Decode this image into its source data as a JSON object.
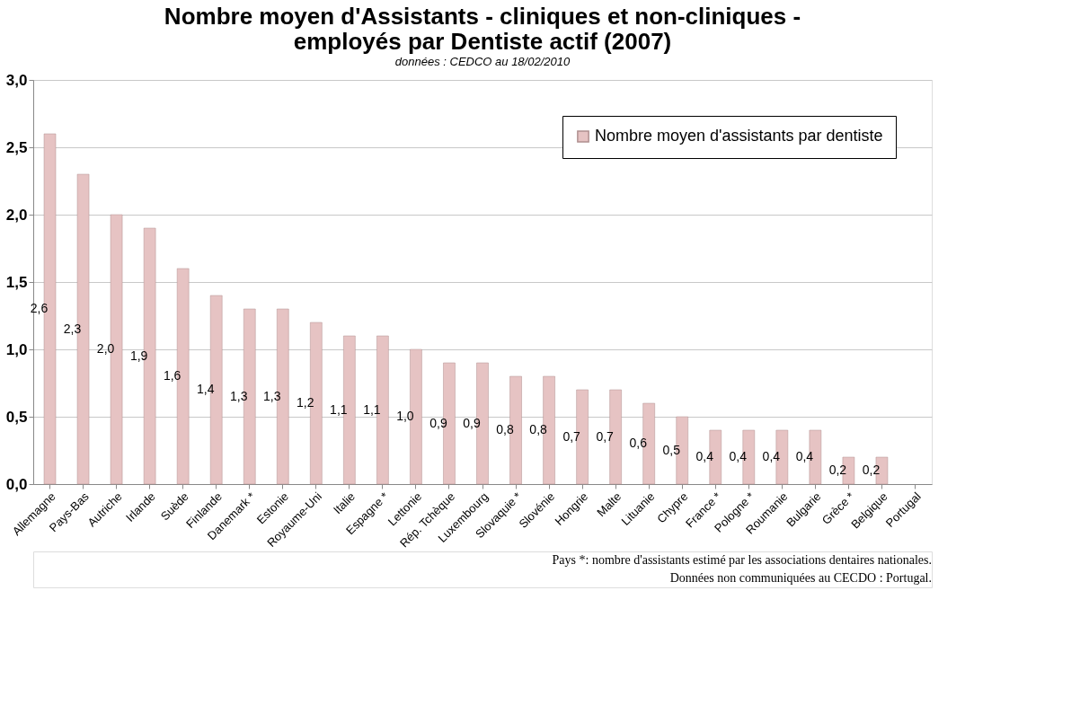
{
  "chart_data": {
    "type": "bar",
    "title": "Nombre moyen d'Assistants - cliniques et non-cliniques - employés par Dentiste actif (2007)",
    "subtitle": "données : CEDCO au  18/02/2010",
    "categories": [
      "Allemagne",
      "Pays-Bas",
      "Autriche",
      "Irlande",
      "Suède",
      "Finlande",
      "Danemark *",
      "Estonie",
      "Royaume-Uni",
      "Italie",
      "Espagne *",
      "Lettonie",
      "Rép. Tchèque",
      "Luxembourg",
      "Slovaquie *",
      "Slovénie",
      "Hongrie",
      "Malte",
      "Lituanie",
      "Chypre",
      "France *",
      "Pologne *",
      "Roumanie",
      "Bulgarie",
      "Grèce *",
      "Belgique",
      "Portugal"
    ],
    "series": [
      {
        "name": "Nombre moyen d'assistants par dentiste",
        "color": "#e6c3c3",
        "values": [
          2.6,
          2.3,
          2.0,
          1.9,
          1.6,
          1.4,
          1.3,
          1.3,
          1.2,
          1.1,
          1.1,
          1.0,
          0.9,
          0.9,
          0.8,
          0.8,
          0.7,
          0.7,
          0.6,
          0.5,
          0.4,
          0.4,
          0.4,
          0.4,
          0.2,
          0.2,
          null
        ],
        "value_labels": [
          "2,6",
          "2,3",
          "2,0",
          "1,9",
          "1,6",
          "1,4",
          "1,3",
          "1,3",
          "1,2",
          "1,1",
          "1,1",
          "1,0",
          "0,9",
          "0,9",
          "0,8",
          "0,8",
          "0,7",
          "0,7",
          "0,6",
          "0,5",
          "0,4",
          "0,4",
          "0,4",
          "0,4",
          "0,2",
          "0,2",
          null
        ]
      }
    ],
    "ylim": [
      0,
      3
    ],
    "yticks": [
      {
        "value": 0,
        "label": "0,0"
      },
      {
        "value": 0.5,
        "label": "0,5"
      },
      {
        "value": 1,
        "label": "1,0"
      },
      {
        "value": 1.5,
        "label": "1,5"
      },
      {
        "value": 2,
        "label": "2,0"
      },
      {
        "value": 2.5,
        "label": "2,5"
      },
      {
        "value": 3,
        "label": "3,0"
      }
    ],
    "grid": "y",
    "legend": "top right",
    "annotations": [
      "Pays *: nombre d'assistants estimé par les associations dentaires nationales.",
      "Données non communiquées au CECDO : Portugal."
    ]
  }
}
